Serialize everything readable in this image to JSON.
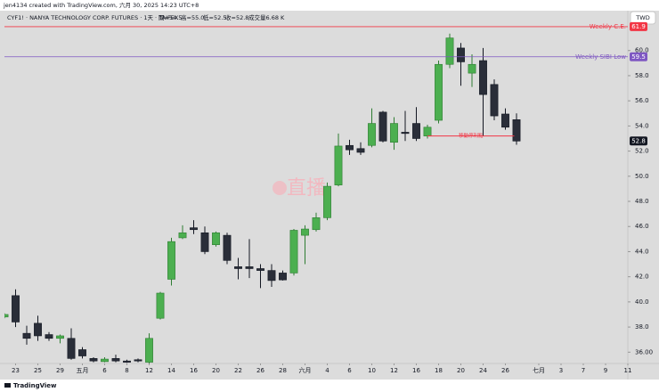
{
  "header": {
    "credit": "jen4134 created with TradingView.com, 六月 30, 2025 14:23 UTC+8",
    "symbol": "CYF1! · NANYA TECHNOLOGY CORP. FUTURES · 1天 · TAIFEX",
    "ohlc": [
      "開=54.5",
      "高=55.0",
      "低=52.5",
      "收=52.8"
    ],
    "volume": "成交量6.68 K"
  },
  "chart_data": {
    "type": "candlestick",
    "currency": "TWD",
    "watermark": "直播",
    "x": [
      0,
      1,
      2,
      3,
      4,
      5,
      6,
      7,
      8,
      9,
      10,
      11,
      12,
      13,
      14,
      15,
      16,
      17,
      18,
      19,
      20,
      21,
      22,
      23,
      24,
      25,
      26,
      27,
      28,
      29,
      30,
      31,
      32,
      33,
      34,
      35,
      36,
      37,
      38,
      39,
      40,
      41,
      42,
      43,
      44,
      45,
      46
    ],
    "open": [
      38.8,
      40.5,
      37.5,
      38.3,
      37.4,
      37.1,
      37.1,
      36.2,
      35.5,
      35.25,
      35.5,
      35.3,
      35.4,
      35.2,
      38.7,
      41.8,
      45.1,
      45.9,
      45.5,
      44.55,
      45.3,
      42.8,
      42.8,
      42.65,
      42.5,
      42.3,
      42.3,
      45.3,
      45.75,
      46.7,
      49.3,
      52.45,
      52.2,
      52.45,
      55.1,
      52.7,
      53.5,
      54.2,
      53.2,
      54.45,
      58.9,
      60.2,
      58.2,
      59.2,
      57.3,
      54.95,
      54.5
    ],
    "high": [
      39.1,
      41.0,
      38.1,
      38.9,
      37.6,
      37.4,
      37.9,
      36.4,
      35.6,
      35.6,
      35.8,
      35.4,
      35.5,
      37.5,
      40.8,
      45.1,
      46.1,
      46.5,
      46.0,
      45.6,
      45.5,
      43.5,
      45.0,
      43.0,
      43.0,
      42.5,
      45.8,
      46.1,
      47.1,
      49.5,
      53.4,
      52.9,
      52.7,
      55.4,
      55.2,
      54.7,
      55.2,
      55.5,
      54.1,
      59.2,
      61.35,
      60.6,
      59.7,
      60.2,
      57.7,
      55.4,
      55.0
    ],
    "low": [
      38.7,
      38.0,
      36.6,
      36.9,
      36.9,
      36.7,
      35.4,
      35.5,
      35.2,
      35.2,
      35.2,
      35.15,
      35.2,
      35.1,
      38.6,
      41.3,
      45.0,
      45.4,
      43.8,
      44.4,
      43.0,
      41.8,
      41.9,
      41.1,
      41.2,
      41.7,
      42.1,
      43.0,
      45.6,
      46.5,
      49.2,
      51.7,
      51.7,
      52.3,
      52.7,
      52.1,
      52.8,
      52.8,
      53.0,
      54.2,
      58.6,
      57.2,
      57.1,
      53.2,
      54.45,
      53.7,
      52.5
    ],
    "close": [
      39.0,
      38.4,
      37.1,
      37.3,
      37.1,
      37.3,
      35.5,
      35.7,
      35.3,
      35.45,
      35.3,
      35.2,
      35.3,
      37.1,
      40.7,
      44.8,
      45.5,
      45.75,
      44.0,
      45.5,
      43.3,
      42.65,
      42.65,
      42.5,
      41.7,
      41.75,
      45.7,
      45.8,
      46.7,
      49.2,
      52.4,
      52.1,
      51.9,
      54.2,
      52.8,
      54.2,
      53.4,
      53.0,
      53.9,
      58.9,
      61.0,
      59.1,
      58.9,
      56.5,
      54.8,
      53.9,
      52.8
    ],
    "up_color": "#4caf50",
    "down_color": "#2a2e39",
    "xlim": [
      0,
      56
    ],
    "xticks": [
      {
        "value": 1,
        "label": "23"
      },
      {
        "value": 3,
        "label": "25"
      },
      {
        "value": 5,
        "label": "29"
      },
      {
        "value": 7,
        "label": "五月"
      },
      {
        "value": 9,
        "label": "6"
      },
      {
        "value": 11,
        "label": "8"
      },
      {
        "value": 13,
        "label": "12"
      },
      {
        "value": 15,
        "label": "14"
      },
      {
        "value": 17,
        "label": "16"
      },
      {
        "value": 19,
        "label": "20"
      },
      {
        "value": 21,
        "label": "22"
      },
      {
        "value": 23,
        "label": "26"
      },
      {
        "value": 25,
        "label": "28"
      },
      {
        "value": 27,
        "label": "六月"
      },
      {
        "value": 29,
        "label": "4"
      },
      {
        "value": 31,
        "label": "6"
      },
      {
        "value": 33,
        "label": "10"
      },
      {
        "value": 35,
        "label": "12"
      },
      {
        "value": 37,
        "label": "16"
      },
      {
        "value": 39,
        "label": "18"
      },
      {
        "value": 41,
        "label": "20"
      },
      {
        "value": 43,
        "label": "24"
      },
      {
        "value": 45,
        "label": "26"
      },
      {
        "value": 48,
        "label": "七月"
      },
      {
        "value": 50,
        "label": "3"
      },
      {
        "value": 52,
        "label": "7"
      },
      {
        "value": 54,
        "label": "9"
      },
      {
        "value": 56,
        "label": "11"
      }
    ],
    "ylim": [
      35.1,
      63.1
    ],
    "yticks": [
      {
        "value": 36,
        "label": "36.00"
      },
      {
        "value": 38,
        "label": "38.0"
      },
      {
        "value": 40,
        "label": "40.0"
      },
      {
        "value": 42,
        "label": "42.0"
      },
      {
        "value": 44,
        "label": "44.0"
      },
      {
        "value": 46,
        "label": "46.0"
      },
      {
        "value": 48,
        "label": "48.0"
      },
      {
        "value": 50,
        "label": "50.0"
      },
      {
        "value": 52,
        "label": "52.0"
      },
      {
        "value": 54,
        "label": "54.0"
      },
      {
        "value": 56,
        "label": "56.0"
      },
      {
        "value": 58,
        "label": "58.0"
      },
      {
        "value": 60,
        "label": "60.0"
      }
    ],
    "grid": false,
    "levels": [
      {
        "name": "Weekly C.E.",
        "value": 61.9,
        "color": "#f23645"
      },
      {
        "name": "Weekly SIBI Low",
        "value": 59.5,
        "color": "#7e57c2"
      }
    ],
    "last_price": 52.8,
    "last_price_color": "#131722",
    "annotation": {
      "text": "移動停利點",
      "value": 53.2,
      "x": [
        38,
        45.8
      ],
      "color": "#f23645"
    },
    "footer": "TradingView"
  }
}
